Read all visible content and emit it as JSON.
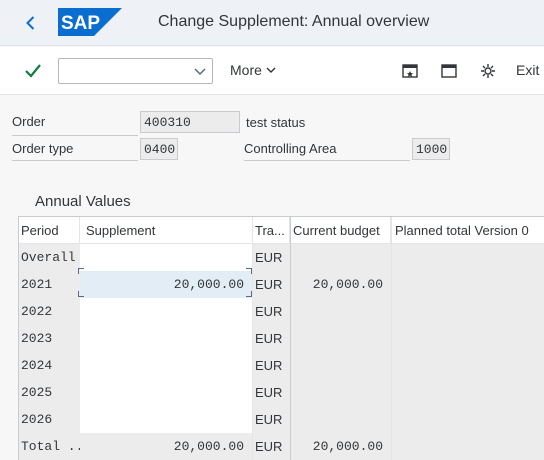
{
  "header": {
    "title": "Change Supplement: Annual overview",
    "logo_text": "SAP",
    "colors": {
      "logo_blue": "#0a6ed1",
      "accent": "#0a6ed1",
      "check_green": "#107e3e"
    }
  },
  "toolbar": {
    "command_value": "",
    "more_label": "More",
    "exit_label": "Exit",
    "icons": [
      "back-icon",
      "checkmark-icon",
      "chevron-down-icon",
      "new-window-icon",
      "window-icon",
      "settings-icon"
    ]
  },
  "form": {
    "order_label": "Order",
    "order_value": "400310",
    "order_status": "test status",
    "order_type_label": "Order type",
    "order_type_value": "0400",
    "controlling_area_label": "Controlling Area",
    "controlling_area_value": "1000"
  },
  "annual_values": {
    "title": "Annual Values",
    "columns": {
      "period": "Period",
      "supplement": "Supplement",
      "tra": "Tra...",
      "current_budget": "Current budget",
      "planned_total": "Planned total Version 0"
    },
    "rows": [
      {
        "period": "Overall",
        "supplement": "",
        "tra": "EUR",
        "current_budget": "",
        "planned_total": ""
      },
      {
        "period": "2021",
        "supplement": "20,000.00",
        "tra": "EUR",
        "current_budget": "20,000.00",
        "planned_total": ""
      },
      {
        "period": "2022",
        "supplement": "",
        "tra": "EUR",
        "current_budget": "",
        "planned_total": ""
      },
      {
        "period": "2023",
        "supplement": "",
        "tra": "EUR",
        "current_budget": "",
        "planned_total": ""
      },
      {
        "period": "2024",
        "supplement": "",
        "tra": "EUR",
        "current_budget": "",
        "planned_total": ""
      },
      {
        "period": "2025",
        "supplement": "",
        "tra": "EUR",
        "current_budget": "",
        "planned_total": ""
      },
      {
        "period": "2026",
        "supplement": "",
        "tra": "EUR",
        "current_budget": "",
        "planned_total": ""
      },
      {
        "period": "Total ...",
        "supplement": "20,000.00",
        "tra": "EUR",
        "current_budget": "20,000.00",
        "planned_total": ""
      }
    ]
  }
}
